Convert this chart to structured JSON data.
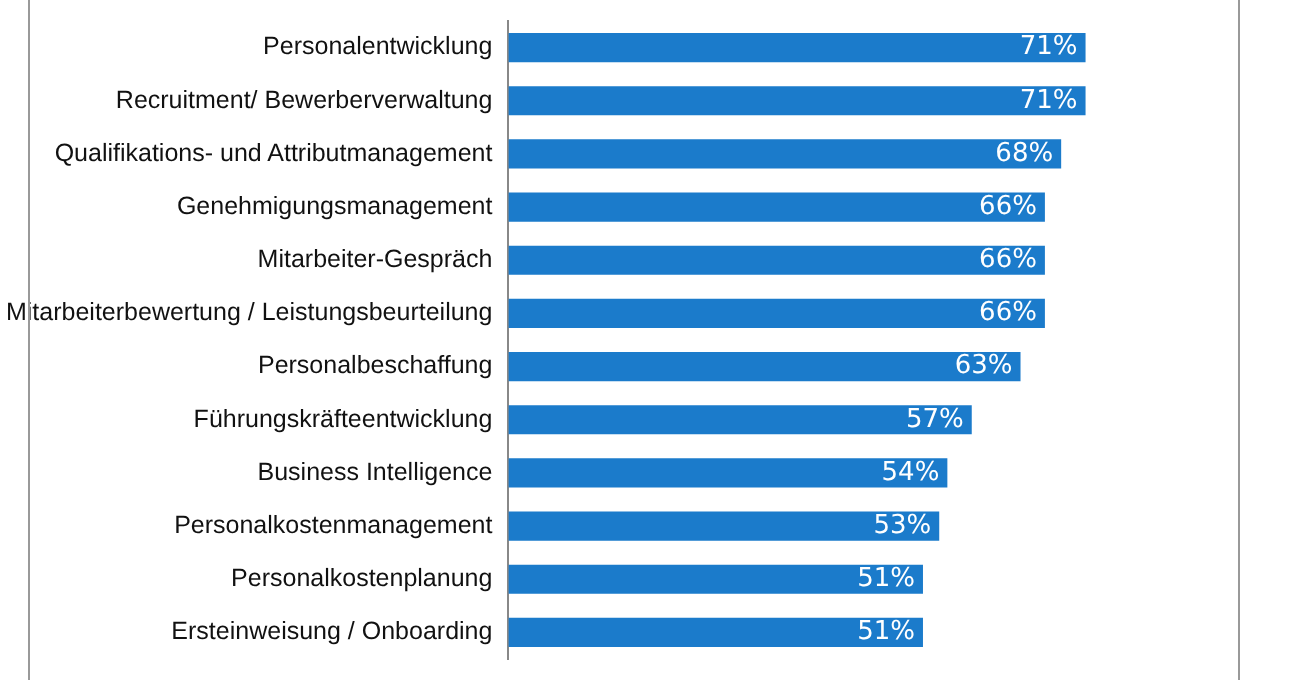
{
  "chart_data": {
    "type": "bar",
    "orientation": "horizontal",
    "categories": [
      "Personalentwicklung",
      "Recruitment/ Bewerberverwaltung",
      "Qualifikations- und Attributmanagement",
      "Genehmigungsmanagement",
      "Mitarbeiter-Gespräch",
      "Mitarbeiterbewertung / Leistungsbeurteilung",
      "Personalbeschaffung",
      "Führungskräfteentwicklung",
      "Business Intelligence",
      "Personalkostenmanagement",
      "Personalkostenplanung",
      "Ersteinweisung / Onboarding"
    ],
    "values": [
      71,
      71,
      68,
      66,
      66,
      66,
      63,
      57,
      54,
      53,
      51,
      51
    ],
    "value_labels": [
      "71%",
      "71%",
      "68%",
      "66%",
      "66%",
      "66%",
      "63%",
      "57%",
      "54%",
      "53%",
      "51%",
      "51%"
    ],
    "color": "#1b7bcb",
    "xlim": [
      0,
      90
    ],
    "tick_labels": "y",
    "grid": false,
    "legend": false
  }
}
